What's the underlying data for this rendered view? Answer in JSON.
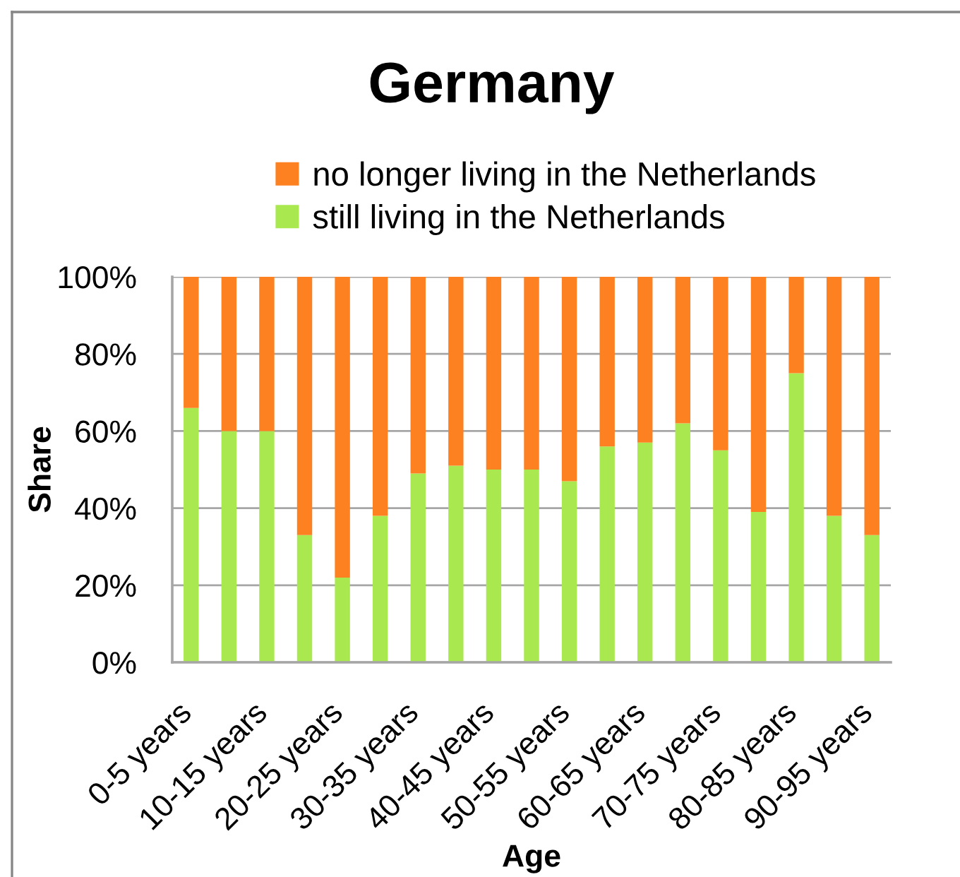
{
  "chart_data": {
    "type": "bar",
    "title": "Germany",
    "xlabel": "Age",
    "ylabel": "Share",
    "categories": [
      "0-5 years",
      null,
      "10-15 years",
      null,
      "20-25 years",
      null,
      "30-35 years",
      null,
      "40-45 years",
      null,
      "50-55 years",
      null,
      "60-65 years",
      null,
      "70-75 years",
      null,
      "80-85 years",
      null,
      "90-95 years"
    ],
    "series": [
      {
        "name": "still living in the Netherlands",
        "color": "#aae850",
        "values": [
          66,
          60,
          60,
          33,
          22,
          38,
          49,
          51,
          50,
          50,
          47,
          56,
          57,
          62,
          55,
          39,
          75,
          38,
          33
        ]
      },
      {
        "name": "no longer living in the Netherlands",
        "color": "#fd8021",
        "values": [
          34,
          40,
          40,
          67,
          78,
          62,
          51,
          49,
          50,
          50,
          53,
          44,
          43,
          38,
          45,
          61,
          25,
          62,
          67
        ]
      }
    ],
    "stacked": true,
    "ylim": [
      0,
      100
    ],
    "yticks": [
      {
        "value": 0,
        "label": "0%"
      },
      {
        "value": 20,
        "label": "20%"
      },
      {
        "value": 40,
        "label": "40%"
      },
      {
        "value": 60,
        "label": "60%"
      },
      {
        "value": 80,
        "label": "80%"
      },
      {
        "value": 100,
        "label": "100%"
      }
    ],
    "grid": "y",
    "legend": "top"
  }
}
